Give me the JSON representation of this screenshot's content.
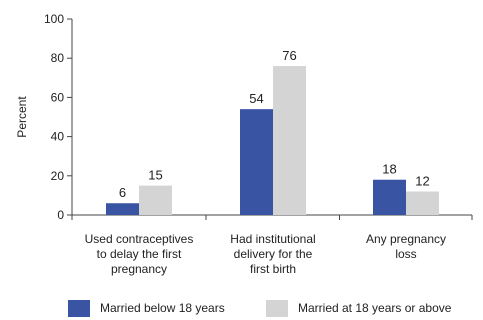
{
  "chart_data": {
    "type": "bar",
    "title": "",
    "xlabel": "",
    "ylabel": "Percent",
    "ylim": [
      0,
      100
    ],
    "yticks": [
      0,
      20,
      40,
      60,
      80,
      100
    ],
    "grid": false,
    "legend_position": "bottom",
    "categories": [
      [
        "Used contraceptives",
        "to delay the first",
        "pregnancy"
      ],
      [
        "Had institutional",
        "delivery for the",
        "first birth"
      ],
      [
        "Any pregnancy",
        "loss"
      ]
    ],
    "series": [
      {
        "name": "Married below 18 years",
        "color": "#3a54a4",
        "values": [
          6,
          54,
          18
        ]
      },
      {
        "name": "Married at 18 years or above",
        "color": "#d4d4d4",
        "values": [
          15,
          76,
          12
        ]
      }
    ]
  }
}
